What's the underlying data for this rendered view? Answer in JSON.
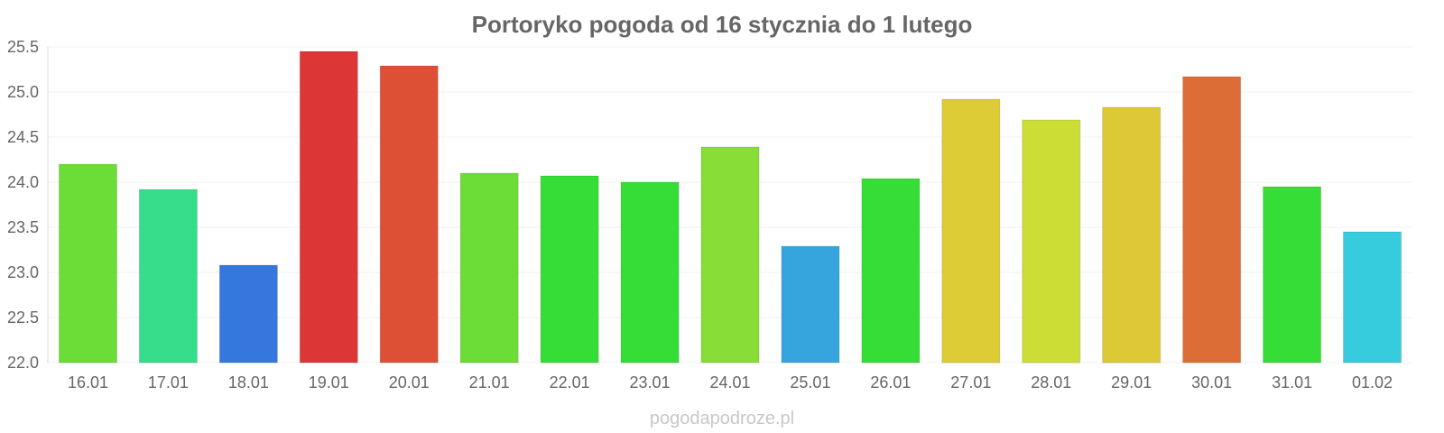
{
  "chart_data": {
    "type": "bar",
    "title": "Portoryko pogoda od 16 stycznia do 1 lutego",
    "xlabel": "",
    "ylabel": "",
    "ylim": [
      22.0,
      25.5
    ],
    "yticks": [
      "22.0",
      "22.5",
      "23.0",
      "23.5",
      "24.0",
      "24.5",
      "25.0",
      "25.5"
    ],
    "grid": true,
    "legend": "none",
    "categories": [
      "16.01",
      "17.01",
      "18.01",
      "19.01",
      "20.01",
      "21.01",
      "22.01",
      "23.01",
      "24.01",
      "25.01",
      "26.01",
      "27.01",
      "28.01",
      "29.01",
      "30.01",
      "31.01",
      "01.02"
    ],
    "values": [
      24.2,
      23.92,
      23.08,
      25.45,
      25.29,
      24.1,
      24.07,
      24.0,
      24.39,
      23.29,
      24.04,
      24.92,
      24.69,
      24.83,
      25.17,
      23.95,
      23.45
    ],
    "colors": [
      "#6bdd36",
      "#36dd8a",
      "#3677dd",
      "#dd3636",
      "#dd5036",
      "#6bdd36",
      "#36dd36",
      "#36dd36",
      "#88dd36",
      "#36a5dd",
      "#36dd36",
      "#ddcc36",
      "#ccdd36",
      "#ddc836",
      "#dd6d36",
      "#36dd36",
      "#36ccdd"
    ]
  },
  "watermark": "pogodapodroze.pl"
}
